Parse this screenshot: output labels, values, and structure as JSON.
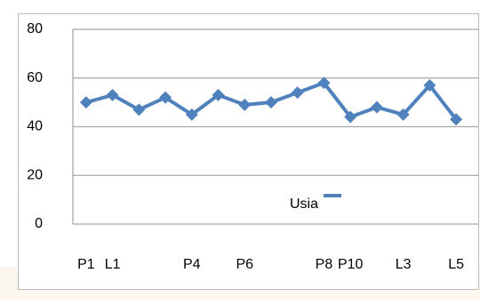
{
  "chart_data": {
    "type": "line",
    "categories": [
      "P1",
      "L1",
      null,
      null,
      "P4",
      null,
      "P6",
      null,
      null,
      "P8",
      "P10",
      null,
      "L3",
      null,
      "L5"
    ],
    "series": [
      {
        "name": "Usia",
        "color": "#4f81bd",
        "values": [
          50,
          53,
          47,
          52,
          45,
          53,
          49,
          50,
          54,
          58,
          44,
          48,
          45,
          57,
          43
        ]
      }
    ],
    "ylim": [
      0,
      80
    ],
    "yticks": [
      0,
      20,
      40,
      60,
      80
    ],
    "grid": true,
    "legend": "inside-bottom"
  }
}
